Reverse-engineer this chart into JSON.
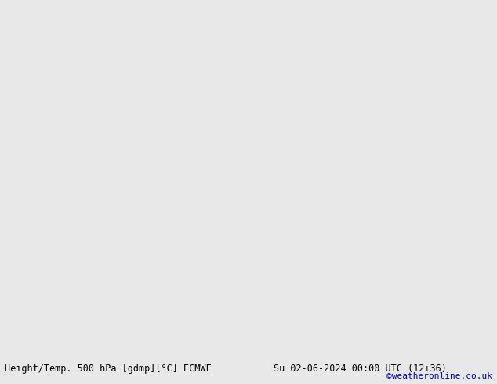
{
  "title_left": "Height/Temp. 500 hPa [gdmp][°C] ECMWF",
  "title_right": "Su 02-06-2024 00:00 UTC (12+36)",
  "credit": "©weatheronline.co.uk",
  "bg_color": "#d0d0d0",
  "land_green": "#b8d4a0",
  "land_gray": "#b8b8b8",
  "ocean_color": "#c8c8c8",
  "credit_color": "#0000cc",
  "figsize": [
    6.34,
    4.9
  ],
  "dpi": 100,
  "lon_min": -55,
  "lon_max": 55,
  "lat_min": 25,
  "lat_max": 75
}
